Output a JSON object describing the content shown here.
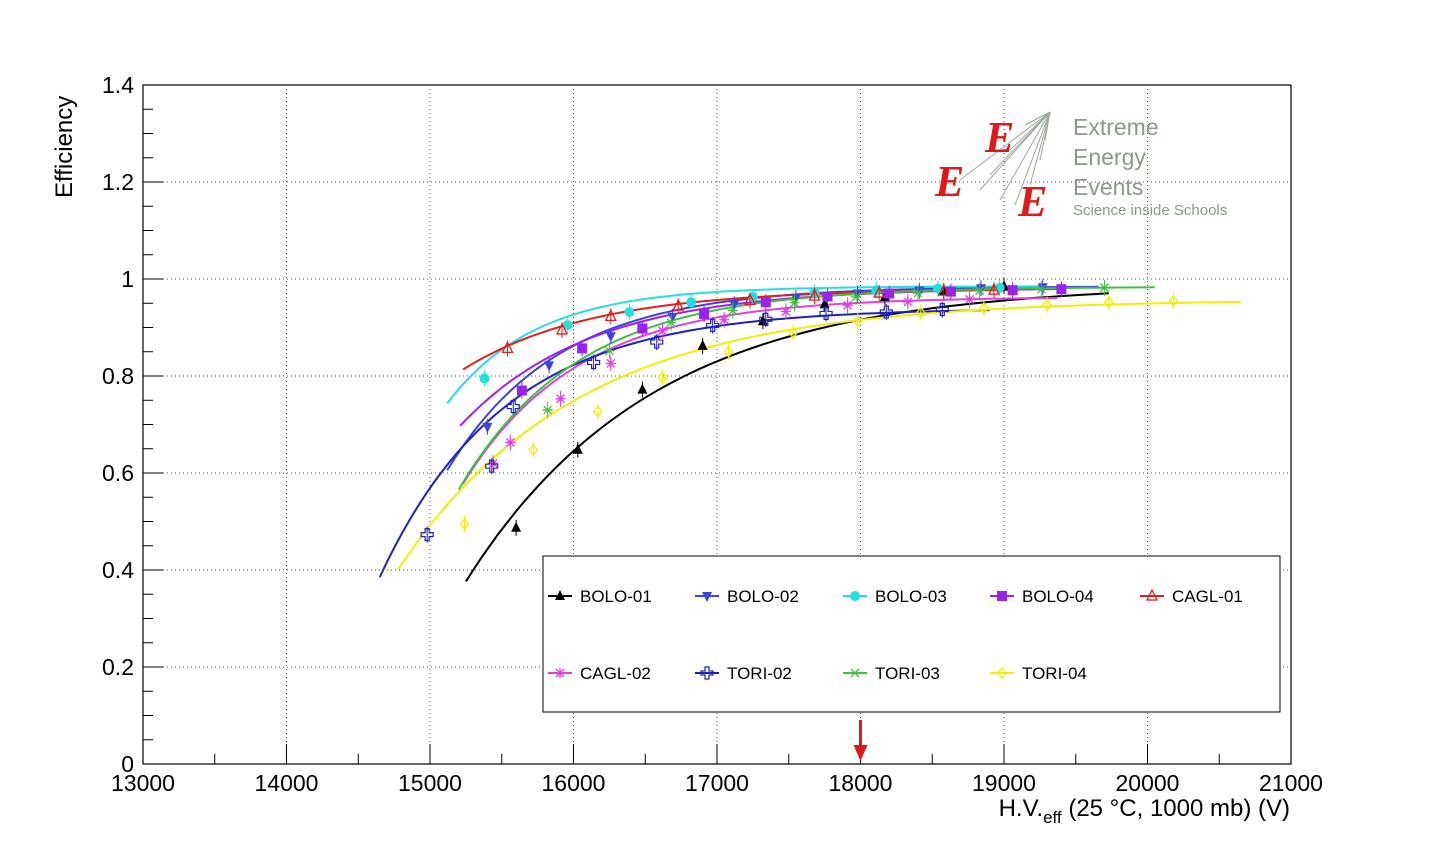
{
  "chart_data": {
    "type": "scatter",
    "xlabel": "H.V.",
    "xlabel_sub": "eff",
    "xlabel_tail": " (25 °C, 1000 mb) (V)",
    "ylabel": "Efficiency",
    "xlim": [
      13000,
      21000
    ],
    "ylim": [
      0,
      1.4
    ],
    "x_ticks": [
      13000,
      14000,
      15000,
      16000,
      17000,
      18000,
      19000,
      20000,
      21000
    ],
    "y_ticks": [
      0,
      0.2,
      0.4,
      0.6,
      0.8,
      1,
      1.2,
      1.4
    ],
    "x_tick_labels": [
      "13000",
      "14000",
      "15000",
      "16000",
      "17000",
      "18000",
      "19000",
      "20000",
      "21000"
    ],
    "y_tick_labels": [
      "0",
      "0.2",
      "0.4",
      "0.6",
      "0.8",
      "1",
      "1.2",
      "1.4"
    ],
    "grid": true,
    "legend_position": "bottom-right",
    "marker_arrow_x": 18000,
    "series": [
      {
        "name": "BOLO-01",
        "color": "#000000",
        "marker": "triangle-up",
        "x": [
          15600,
          16030,
          16480,
          16900,
          17320,
          17750,
          18170,
          18580,
          19000
        ],
        "y": [
          0.487,
          0.648,
          0.772,
          0.862,
          0.913,
          0.948,
          0.963,
          0.975,
          0.985
        ],
        "fit": {
          "x0": 15250,
          "x1": 19730,
          "a": 0.99,
          "b": 0.62,
          "k": 1300
        }
      },
      {
        "name": "BOLO-02",
        "color": "#4040e0",
        "marker": "triangle-down",
        "x": [
          15400,
          15830,
          16260,
          16690,
          17120,
          17550,
          17980,
          18410,
          18840,
          19270
        ],
        "y": [
          0.695,
          0.822,
          0.882,
          0.922,
          0.948,
          0.961,
          0.97,
          0.976,
          0.981,
          0.983
        ],
        "fit": {
          "x0": 15120,
          "x1": 19660,
          "a": 0.985,
          "b": 0.385,
          "k": 780
        }
      },
      {
        "name": "BOLO-03",
        "color": "#22e0e0",
        "marker": "circle",
        "x": [
          15380,
          15960,
          16390,
          16820,
          17250,
          17680,
          18110,
          18540,
          18970
        ],
        "y": [
          0.795,
          0.905,
          0.932,
          0.952,
          0.963,
          0.972,
          0.977,
          0.98,
          0.982
        ],
        "fit": {
          "x0": 15120,
          "x1": 19280,
          "a": 0.985,
          "b": 0.245,
          "k": 620
        }
      },
      {
        "name": "BOLO-04",
        "color": "#9a22ee",
        "marker": "square",
        "x": [
          15640,
          16060,
          16480,
          16910,
          17340,
          17770,
          18200,
          18630,
          19060,
          19400
        ],
        "y": [
          0.77,
          0.857,
          0.898,
          0.928,
          0.952,
          0.964,
          0.97,
          0.974,
          0.977,
          0.979
        ],
        "fit": {
          "x0": 15210,
          "x1": 19400,
          "a": 0.982,
          "b": 0.29,
          "k": 900
        }
      },
      {
        "name": "CAGL-01",
        "color": "#e02020",
        "marker": "open-triangle-up",
        "x": [
          15540,
          15920,
          16260,
          16730,
          17230,
          17680,
          18130,
          18580,
          18930
        ],
        "y": [
          0.857,
          0.895,
          0.923,
          0.944,
          0.956,
          0.965,
          0.971,
          0.975,
          0.977
        ],
        "fit": {
          "x0": 15230,
          "x1": 19050,
          "a": 0.98,
          "b": 0.17,
          "k": 900
        }
      },
      {
        "name": "CAGL-02",
        "color": "#e040e0",
        "marker": "star",
        "x": [
          15440,
          15560,
          15910,
          16260,
          16620,
          17050,
          17480,
          17910,
          18330,
          18760
        ],
        "y": [
          0.62,
          0.663,
          0.753,
          0.826,
          0.893,
          0.916,
          0.933,
          0.946,
          0.953,
          0.958
        ],
        "fit": {
          "x0": 15230,
          "x1": 19370,
          "a": 0.963,
          "b": 0.4,
          "k": 800
        }
      },
      {
        "name": "TORI-02",
        "color": "#2020c0",
        "marker": "open-cross",
        "x": [
          14980,
          15430,
          15580,
          16140,
          16580,
          16970,
          17340,
          17760,
          18180,
          18570
        ],
        "y": [
          0.473,
          0.614,
          0.737,
          0.828,
          0.87,
          0.904,
          0.917,
          0.929,
          0.932,
          0.937
        ],
        "fit": {
          "x0": 14650,
          "x1": 18900,
          "a": 0.94,
          "b": 0.59,
          "k": 870
        }
      },
      {
        "name": "TORI-03",
        "color": "#40c040",
        "marker": "asterisk",
        "x": [
          15820,
          16250,
          16680,
          17110,
          17540,
          17970,
          18400,
          18830,
          19260,
          19700
        ],
        "y": [
          0.73,
          0.852,
          0.91,
          0.935,
          0.951,
          0.963,
          0.971,
          0.976,
          0.979,
          0.982
        ],
        "fit": {
          "x0": 15200,
          "x1": 20050,
          "a": 0.984,
          "b": 0.425,
          "k": 830
        }
      },
      {
        "name": "TORI-04",
        "color": "#f0f000",
        "marker": "open-diamond",
        "x": [
          15240,
          15720,
          16170,
          16620,
          17080,
          17530,
          17980,
          18420,
          18860,
          19300,
          19730,
          20180
        ],
        "y": [
          0.495,
          0.648,
          0.727,
          0.797,
          0.85,
          0.889,
          0.913,
          0.931,
          0.94,
          0.947,
          0.952,
          0.954
        ],
        "fit": {
          "x0": 14780,
          "x1": 20650,
          "a": 0.958,
          "b": 0.58,
          "k": 1250
        }
      }
    ]
  },
  "logo": {
    "line1": "Extreme",
    "line2": "Energy",
    "line3": "Events",
    "line4": "Science inside Schools",
    "letter": "E",
    "accent_color": "#e01818",
    "text_color": "#8a9a88"
  }
}
